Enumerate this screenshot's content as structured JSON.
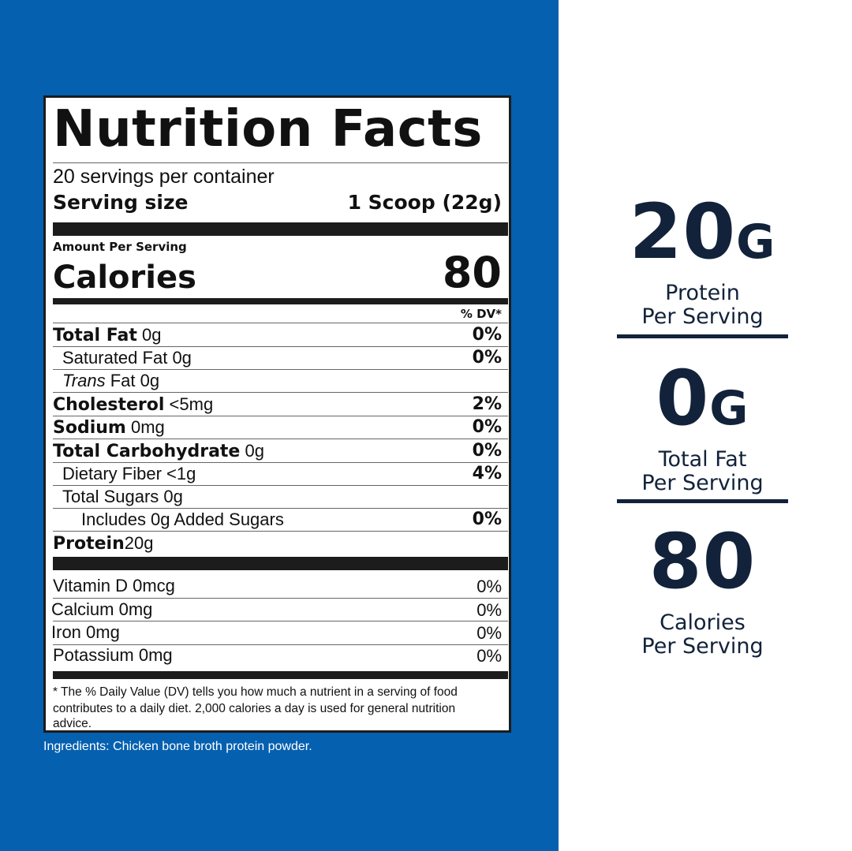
{
  "label": {
    "title": "Nutrition Facts",
    "servings": "20 servings per container",
    "serving_size_label": "Serving size",
    "serving_size_value": "1 Scoop (22g)",
    "amount_per_serving": "Amount Per Serving",
    "calories_label": "Calories",
    "calories_value": "80",
    "dv_header": "% DV*",
    "nutrients": [
      {
        "name": "Total Fat",
        "amount": "0g",
        "dv": "0%"
      },
      {
        "name": "Saturated Fat",
        "amount": "0g",
        "dv": "0%"
      },
      {
        "name": "Trans",
        "name_rest": "Fat",
        "amount": "0g",
        "dv": ""
      },
      {
        "name": "Cholesterol",
        "amount": "<5mg",
        "dv": "2%"
      },
      {
        "name": "Sodium",
        "amount": "0mg",
        "dv": "0%"
      },
      {
        "name": "Total Carbohydrate",
        "amount": "0g",
        "dv": "0%"
      },
      {
        "name": "Dietary Fiber",
        "amount": "<1g",
        "dv": "4%"
      },
      {
        "name": "Total Sugars",
        "amount": "0g",
        "dv": ""
      },
      {
        "name": "Includes 0g Added Sugars",
        "amount": "",
        "dv": "0%"
      },
      {
        "name": "Protein",
        "amount": "20g",
        "dv": ""
      }
    ],
    "vitamins": [
      {
        "name": "Vitamin D",
        "amount": "0mcg",
        "dv": "0%"
      },
      {
        "name": "Calcium",
        "amount": "0mg",
        "dv": "0%"
      },
      {
        "name": "Iron",
        "amount": "0mg",
        "dv": "0%"
      },
      {
        "name": "Potassium",
        "amount": "0mg",
        "dv": "0%"
      }
    ],
    "footnote_1": "* The % Daily Value (DV) tells you how much a nutrient in a serving of food",
    "footnote_2": "contributes to a daily diet. 2,000 calories a day is used for general nutrition",
    "footnote_3": "advice."
  },
  "ingredients": "Ingredients: Chicken bone broth protein powder.",
  "stats": [
    {
      "value": "20",
      "unit": "G",
      "caption_1": "Protein",
      "caption_2": "Per Serving"
    },
    {
      "value": "0",
      "unit": "G",
      "caption_1": "Total Fat",
      "caption_2": "Per Serving"
    },
    {
      "value": "80",
      "unit": "",
      "caption_1": "Calories",
      "caption_2": "Per Serving"
    }
  ],
  "colors": {
    "panel_blue": "#0560b0",
    "stat_navy": "#12223a"
  }
}
